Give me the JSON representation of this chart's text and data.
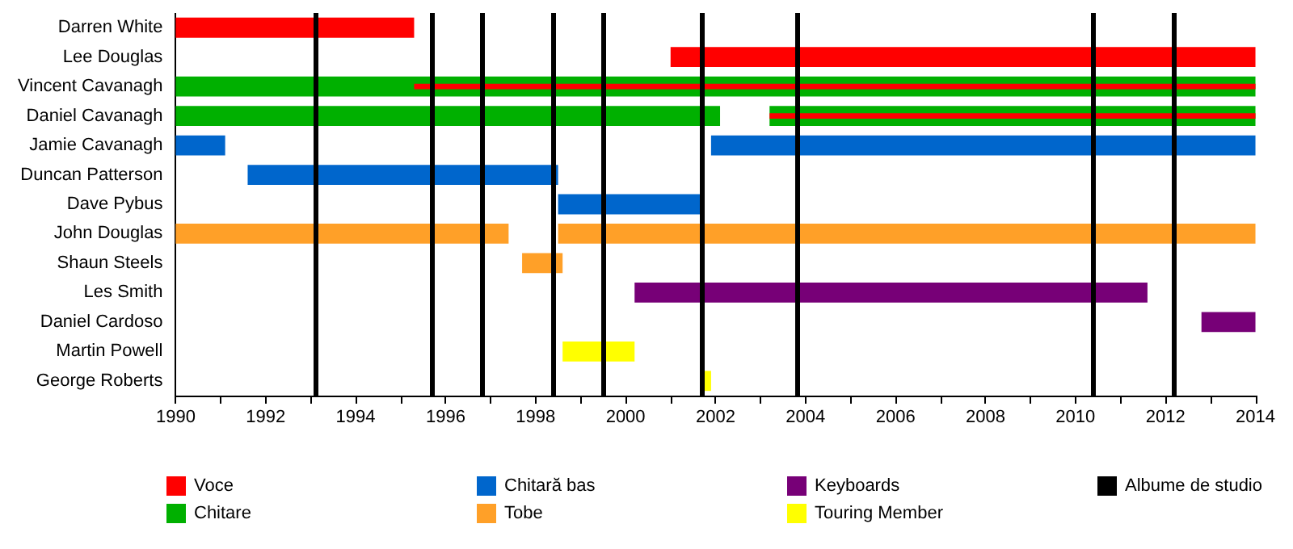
{
  "chart_data": {
    "type": "bar",
    "orientation": "horizontal",
    "categories": [
      "Darren White",
      "Lee Douglas",
      "Vincent Cavanagh",
      "Daniel Cavanagh",
      "Jamie Cavanagh",
      "Duncan Patterson",
      "Dave Pybus",
      "John Douglas",
      "Shaun Steels",
      "Les Smith",
      "Daniel Cardoso",
      "Martin Powell",
      "George Roberts"
    ],
    "series": [
      {
        "name": "Voce",
        "color": "#ff0000",
        "base": [
          1990,
          2001.0,
          1995.3,
          2003.2,
          null,
          null,
          null,
          null,
          null,
          null,
          null,
          null,
          null
        ],
        "values": [
          5.3,
          13.0,
          18.7,
          10.8,
          null,
          null,
          null,
          null,
          null,
          null,
          null,
          null,
          null
        ]
      },
      {
        "name": "Chitare",
        "color": "#00b000",
        "base": [
          null,
          null,
          1990,
          1990,
          null,
          null,
          null,
          null,
          null,
          null,
          null,
          null,
          null
        ],
        "values": [
          null,
          null,
          24,
          12.1,
          null,
          null,
          null,
          null,
          null,
          null,
          null,
          null,
          null
        ]
      },
      {
        "name": "Chitară bas",
        "color": "#0066cc",
        "base": [
          null,
          null,
          null,
          null,
          1990,
          1991.6,
          1998.5,
          null,
          null,
          null,
          null,
          null,
          null
        ],
        "values": [
          null,
          null,
          null,
          null,
          1.1,
          6.9,
          3.2,
          null,
          null,
          null,
          null,
          null,
          null
        ]
      },
      {
        "name": "Tobe",
        "color": "#ffa028",
        "base": [
          null,
          null,
          null,
          null,
          null,
          null,
          null,
          1990,
          1997.7,
          null,
          null,
          null,
          null
        ],
        "values": [
          null,
          null,
          null,
          null,
          null,
          null,
          null,
          7.4,
          0.9,
          null,
          null,
          null,
          null
        ]
      },
      {
        "name": "Keyboards",
        "color": "#770077",
        "base": [
          null,
          null,
          null,
          null,
          null,
          null,
          null,
          null,
          null,
          2000.2,
          2012.8,
          null,
          null
        ],
        "values": [
          null,
          null,
          null,
          null,
          null,
          null,
          null,
          null,
          null,
          11.4,
          1.2,
          null,
          null
        ]
      },
      {
        "name": "Touring Member",
        "color": "#ffff00",
        "base": [
          null,
          null,
          null,
          null,
          null,
          null,
          null,
          null,
          null,
          null,
          null,
          1998.6,
          2001.7
        ],
        "values": [
          null,
          null,
          null,
          null,
          null,
          null,
          null,
          null,
          null,
          null,
          null,
          1.6,
          0.2
        ]
      },
      {
        "color": "#00b000",
        "base": [
          null,
          null,
          null,
          2003.2,
          null,
          null,
          null,
          null,
          null,
          null,
          null,
          null,
          null
        ],
        "values": [
          null,
          null,
          null,
          10.8,
          null,
          null,
          null,
          null,
          null,
          null,
          null,
          null,
          null
        ]
      },
      {
        "color": "#0066cc",
        "base": [
          null,
          null,
          null,
          null,
          2001.9,
          null,
          null,
          null,
          null,
          null,
          null,
          null,
          null
        ],
        "values": [
          null,
          null,
          null,
          null,
          12.1,
          null,
          null,
          null,
          null,
          null,
          null,
          null,
          null
        ]
      },
      {
        "color": "#ffa028",
        "base": [
          null,
          null,
          null,
          null,
          null,
          null,
          null,
          1998.5,
          null,
          null,
          null,
          null,
          null
        ],
        "values": [
          null,
          null,
          null,
          null,
          null,
          null,
          null,
          15.5,
          null,
          null,
          null,
          null,
          null
        ]
      }
    ],
    "xlim": [
      1990,
      2014
    ],
    "xticks": [
      1990,
      {
        "value": 1991,
        "label": null
      },
      1992,
      {
        "value": 1993,
        "label": null
      },
      1994,
      {
        "value": 1995,
        "label": null
      },
      1996,
      {
        "value": 1997,
        "label": null
      },
      1998,
      {
        "value": 1999,
        "label": null
      },
      2000,
      {
        "value": 2001,
        "label": null
      },
      2002,
      {
        "value": 2003,
        "label": null
      },
      2004,
      {
        "value": 2005,
        "label": null
      },
      2006,
      {
        "value": 2007,
        "label": null
      },
      2008,
      {
        "value": 2009,
        "label": null
      },
      2010,
      {
        "value": 2011,
        "label": null
      },
      2012,
      {
        "value": 2013,
        "label": null
      },
      2014
    ],
    "ref_lines": [
      {
        "axis": "x",
        "value": 1993.1,
        "color": "#000000",
        "label": "Albume de studio"
      },
      {
        "axis": "x",
        "value": 1995.7,
        "color": "#000000"
      },
      {
        "axis": "x",
        "value": 1996.8,
        "color": "#000000"
      },
      {
        "axis": "x",
        "value": 1998.4,
        "color": "#000000"
      },
      {
        "axis": "x",
        "value": 1999.5,
        "color": "#000000"
      },
      {
        "axis": "x",
        "value": 2001.7,
        "color": "#000000"
      },
      {
        "axis": "x",
        "value": 2003.8,
        "color": "#000000"
      },
      {
        "axis": "x",
        "value": 2010.4,
        "color": "#000000"
      },
      {
        "axis": "x",
        "value": 2012.2,
        "color": "#000000"
      }
    ],
    "grid": false,
    "legend": "bottom"
  }
}
